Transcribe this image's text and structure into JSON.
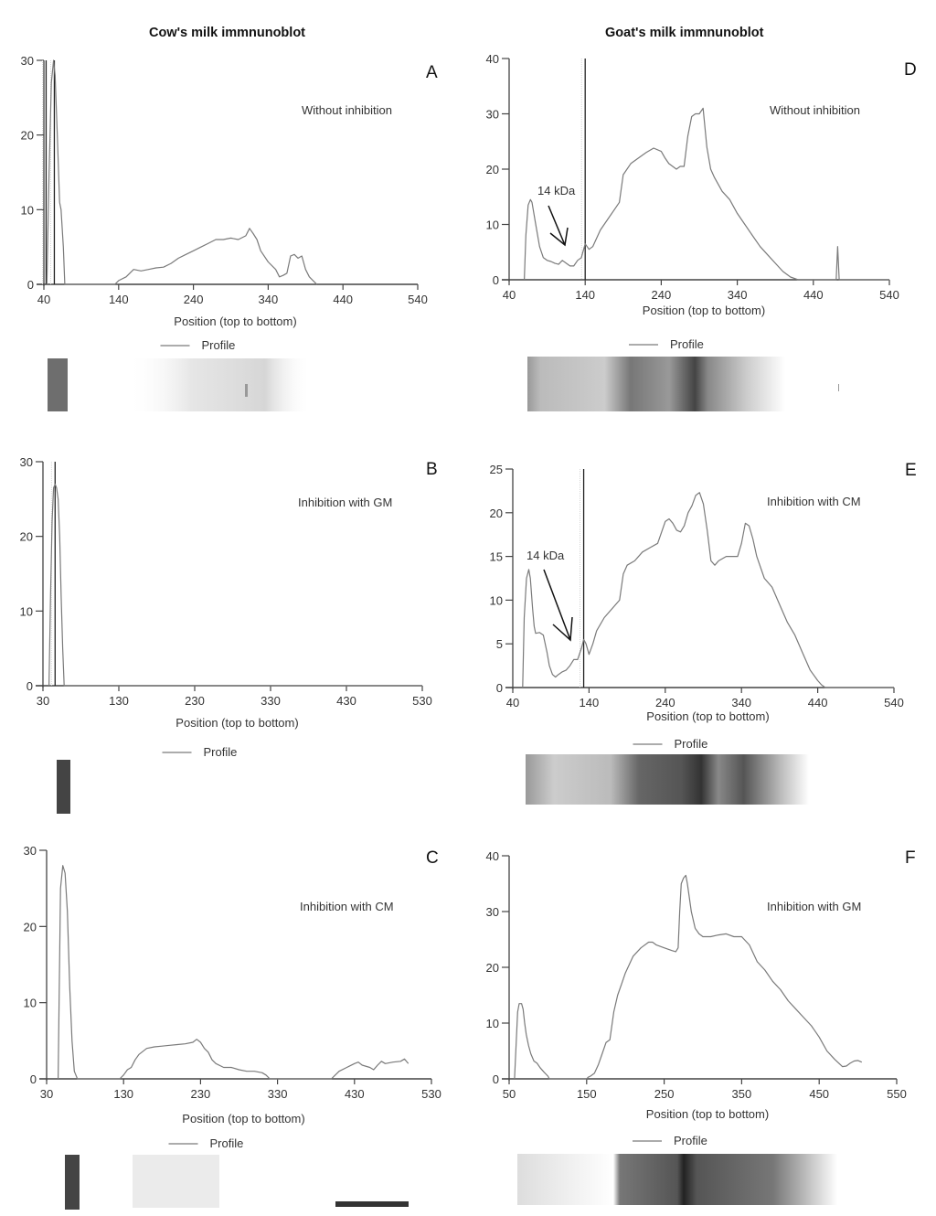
{
  "titles": {
    "left": "Cow's milk immnunoblot",
    "right": "Goat's milk immnunoblot"
  },
  "colors": {
    "profile_line": "#7a7a7a",
    "axis": "#444444",
    "marker": "#222222"
  },
  "chart_data": [
    {
      "id": "A",
      "type": "line",
      "column": "cow",
      "panel_letter": "A",
      "condition": "Without inhibition",
      "xlabel": "Position (top to bottom)",
      "ylabel": "",
      "legend": [
        "Profile"
      ],
      "legend_placement": "bottom",
      "xlim": [
        40,
        540
      ],
      "ylim": [
        0,
        30
      ],
      "xticks": [
        40,
        140,
        240,
        340,
        440,
        540
      ],
      "yticks": [
        0,
        10,
        20,
        30
      ],
      "grid": false,
      "marker_lines_x": [
        43,
        54
      ],
      "series": [
        {
          "name": "Profile",
          "x": [
            44,
            47,
            50,
            53,
            55,
            58,
            61,
            63,
            66,
            68,
            70,
            72,
            135,
            140,
            150,
            160,
            170,
            180,
            190,
            200,
            210,
            220,
            230,
            240,
            250,
            260,
            270,
            280,
            290,
            300,
            310,
            315,
            320,
            325,
            330,
            340,
            350,
            355,
            360,
            365,
            370,
            375,
            380,
            385,
            390,
            395,
            400,
            405
          ],
          "y": [
            0,
            15,
            27,
            30,
            28,
            20,
            11,
            10,
            5,
            0,
            0,
            0,
            0,
            0.5,
            1,
            2,
            1.8,
            2,
            2.2,
            2.3,
            2.8,
            3.5,
            4,
            4.5,
            5,
            5.5,
            6,
            6,
            6.2,
            6,
            6.5,
            7.5,
            6.8,
            6,
            4.5,
            3,
            2,
            1,
            1.2,
            1.5,
            3.8,
            4,
            3.5,
            3.8,
            2,
            1,
            0.5,
            0
          ]
        }
      ]
    },
    {
      "id": "B",
      "type": "line",
      "column": "cow",
      "panel_letter": "B",
      "condition": "Inhibition with GM",
      "xlabel": "Position (top to bottom)",
      "ylabel": "",
      "legend": [
        "Profile"
      ],
      "legend_placement": "bottom",
      "xlim": [
        30,
        530
      ],
      "ylim": [
        0,
        30
      ],
      "xticks": [
        30,
        130,
        230,
        330,
        430,
        530
      ],
      "yticks": [
        0,
        10,
        20,
        30
      ],
      "grid": false,
      "marker_lines_x": [
        46
      ],
      "series": [
        {
          "name": "Profile",
          "x": [
            38,
            40,
            42,
            44,
            46,
            48,
            50,
            52,
            54,
            56,
            58,
            60,
            530
          ],
          "y": [
            0,
            12,
            22,
            26.5,
            27,
            26.5,
            25,
            20,
            12,
            5,
            0,
            0,
            0
          ]
        }
      ]
    },
    {
      "id": "C",
      "type": "line",
      "column": "cow",
      "panel_letter": "C",
      "condition": "Inhibition with CM",
      "xlabel": "Position (top to bottom)",
      "ylabel": "",
      "legend": [
        "Profile"
      ],
      "legend_placement": "bottom",
      "xlim": [
        30,
        530
      ],
      "ylim": [
        0,
        30
      ],
      "xticks": [
        30,
        130,
        230,
        330,
        430,
        530
      ],
      "yticks": [
        0,
        10,
        20,
        30
      ],
      "grid": false,
      "marker_lines_x": [],
      "series": [
        {
          "name": "Profile",
          "x": [
            45,
            48,
            51,
            54,
            57,
            60,
            63,
            66,
            70,
            125,
            130,
            135,
            140,
            145,
            150,
            160,
            170,
            180,
            190,
            200,
            210,
            220,
            225,
            230,
            235,
            240,
            245,
            250,
            260,
            270,
            280,
            290,
            300,
            310,
            315,
            320,
            400,
            405,
            410,
            420,
            430,
            435,
            440,
            450,
            455,
            460,
            465,
            470,
            480,
            490,
            495,
            500
          ],
          "y": [
            0,
            25,
            28,
            27,
            22,
            12,
            5,
            1,
            0,
            0,
            0.5,
            1.2,
            1.5,
            2.5,
            3.2,
            4,
            4.2,
            4.3,
            4.4,
            4.5,
            4.6,
            4.8,
            5.2,
            4.8,
            4,
            3.5,
            2.5,
            2,
            1.5,
            1.5,
            1.2,
            1,
            1,
            0.8,
            0.5,
            0,
            0,
            0.5,
            1,
            1.5,
            2,
            2.2,
            1.8,
            1.5,
            1.2,
            1.8,
            2.3,
            2,
            2.2,
            2.3,
            2.6,
            2
          ]
        }
      ]
    },
    {
      "id": "D",
      "type": "line",
      "column": "goat",
      "panel_letter": "D",
      "condition": "Without inhibition",
      "annotation": "14 kDa",
      "xlabel": "Position (top to bottom)",
      "ylabel": "",
      "legend": [
        "Profile"
      ],
      "legend_placement": "bottom",
      "xlim": [
        40,
        540
      ],
      "ylim": [
        0,
        40
      ],
      "xticks": [
        40,
        140,
        240,
        340,
        440,
        540
      ],
      "yticks": [
        0,
        10,
        20,
        30,
        40
      ],
      "grid": false,
      "marker_lines_x": [
        140
      ],
      "series": [
        {
          "name": "Profile",
          "x": [
            60,
            62,
            65,
            68,
            70,
            75,
            80,
            85,
            90,
            95,
            100,
            105,
            110,
            115,
            120,
            125,
            130,
            135,
            140,
            145,
            150,
            160,
            170,
            180,
            185,
            190,
            200,
            210,
            220,
            230,
            240,
            245,
            250,
            260,
            265,
            270,
            275,
            280,
            285,
            290,
            295,
            300,
            305,
            310,
            320,
            330,
            340,
            350,
            360,
            370,
            380,
            390,
            400,
            410,
            420,
            430,
            470,
            472,
            474,
            540
          ],
          "y": [
            0,
            8,
            13.5,
            14.5,
            14,
            10,
            6,
            4,
            3.5,
            3.3,
            3,
            2.8,
            3.5,
            3,
            2.5,
            2.5,
            3.5,
            4,
            6.5,
            5.5,
            6,
            9,
            11,
            13,
            14,
            19,
            21,
            22,
            23,
            23.8,
            23.2,
            22,
            21,
            20,
            20.5,
            20.5,
            26,
            29.5,
            30,
            30,
            31,
            24,
            20,
            18.5,
            16,
            14.5,
            12,
            10,
            8,
            6,
            4.5,
            3,
            1.5,
            0.5,
            0,
            0,
            0,
            6,
            0,
            0
          ]
        }
      ]
    },
    {
      "id": "E",
      "type": "line",
      "column": "goat",
      "panel_letter": "E",
      "condition": "Inhibition with CM",
      "annotation": "14 kDa",
      "xlabel": "Position (top to bottom)",
      "ylabel": "",
      "legend": [
        "Profile"
      ],
      "legend_placement": "bottom",
      "xlim": [
        40,
        540
      ],
      "ylim": [
        0,
        25
      ],
      "xticks": [
        40,
        140,
        240,
        340,
        440,
        540
      ],
      "yticks": [
        0,
        5,
        10,
        15,
        20,
        25
      ],
      "grid": false,
      "marker_lines_x": [
        133
      ],
      "series": [
        {
          "name": "Profile",
          "x": [
            53,
            55,
            58,
            61,
            63,
            66,
            68,
            70,
            75,
            80,
            85,
            88,
            92,
            96,
            100,
            105,
            110,
            115,
            120,
            125,
            130,
            133,
            136,
            140,
            145,
            150,
            160,
            170,
            180,
            185,
            190,
            200,
            210,
            220,
            230,
            240,
            245,
            250,
            255,
            260,
            265,
            270,
            275,
            280,
            285,
            290,
            295,
            300,
            305,
            310,
            320,
            330,
            335,
            340,
            345,
            350,
            355,
            360,
            370,
            380,
            390,
            400,
            410,
            420,
            430,
            440,
            445,
            450,
            455,
            540
          ],
          "y": [
            0,
            8,
            12.5,
            13.5,
            12.5,
            9,
            7,
            6.2,
            6.3,
            6,
            4,
            2.5,
            1.5,
            1.2,
            1.5,
            1.8,
            2,
            2.5,
            3.2,
            3.2,
            4.5,
            5.5,
            5,
            3.8,
            5,
            6.5,
            8,
            9,
            10,
            13,
            14,
            14.5,
            15.5,
            16,
            16.5,
            19,
            19.3,
            18.8,
            18,
            17.8,
            18.5,
            20,
            20.8,
            22,
            22.3,
            21,
            18,
            14.5,
            14,
            14.5,
            15,
            15,
            15,
            16.5,
            18.8,
            18.5,
            17,
            15,
            12.5,
            11.5,
            9.5,
            7.5,
            6,
            4,
            2,
            0.8,
            0.3,
            0,
            0,
            0
          ]
        }
      ]
    },
    {
      "id": "F",
      "type": "line",
      "column": "goat",
      "panel_letter": "F",
      "condition": "Inhibition with GM",
      "xlabel": "Position (top to bottom)",
      "ylabel": "",
      "legend": [
        "Profile"
      ],
      "legend_placement": "bottom",
      "xlim": [
        50,
        550
      ],
      "ylim": [
        0,
        40
      ],
      "xticks": [
        50,
        150,
        250,
        350,
        450,
        550
      ],
      "yticks": [
        0,
        10,
        20,
        30,
        40
      ],
      "grid": false,
      "marker_lines_x": [],
      "series": [
        {
          "name": "Profile",
          "x": [
            57,
            59,
            61,
            63,
            66,
            68,
            70,
            72,
            75,
            78,
            82,
            86,
            90,
            95,
            100,
            102,
            150,
            152,
            155,
            160,
            165,
            170,
            175,
            180,
            185,
            190,
            195,
            200,
            210,
            220,
            230,
            235,
            240,
            250,
            260,
            265,
            268,
            270,
            272,
            275,
            278,
            280,
            285,
            290,
            295,
            300,
            310,
            320,
            330,
            340,
            350,
            360,
            370,
            380,
            390,
            400,
            410,
            420,
            430,
            440,
            450,
            460,
            470,
            480,
            485,
            490,
            495,
            500,
            505
          ],
          "y": [
            0,
            6,
            12,
            13.5,
            13.5,
            12.5,
            10,
            8,
            6,
            4.5,
            3.2,
            2.8,
            2,
            1.2,
            0.5,
            0,
            0,
            0.3,
            0.5,
            1,
            2.5,
            4.5,
            6.5,
            7,
            12,
            15,
            17,
            19,
            22,
            23.5,
            24.5,
            24.5,
            24,
            23.5,
            23,
            22.8,
            23.5,
            30,
            35,
            36,
            36.5,
            35,
            30,
            27,
            26,
            25.5,
            25.5,
            25.8,
            26,
            25.5,
            25.5,
            24,
            21,
            19.5,
            17.5,
            16,
            14,
            12.5,
            11,
            9.5,
            7.5,
            5,
            3.5,
            2.2,
            2.3,
            2.8,
            3.2,
            3.3,
            3
          ]
        }
      ]
    }
  ],
  "legend_label": "Profile",
  "blots": {
    "A": "band-strip",
    "B": "band-strip",
    "C": "band-strip",
    "D": "band-strip",
    "E": "band-strip",
    "F": "band-strip"
  }
}
